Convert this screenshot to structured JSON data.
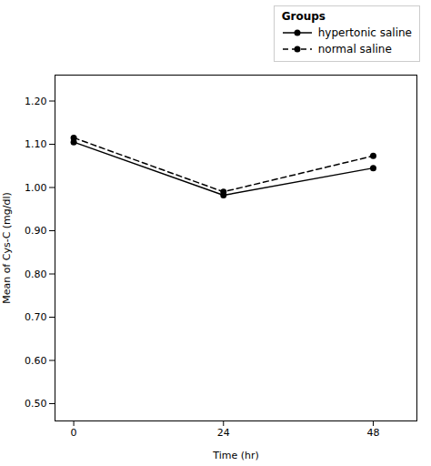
{
  "chart_data": {
    "type": "line",
    "x": [
      0,
      24,
      48
    ],
    "series": [
      {
        "name": "hypertonic saline",
        "color": "#000000",
        "line_style": "solid",
        "marker": "circle",
        "values": [
          1.105,
          0.982,
          1.045
        ]
      },
      {
        "name": "normal saline",
        "color": "#000000",
        "line_style": "dashed",
        "marker": "circle",
        "values": [
          1.115,
          0.99,
          1.073
        ]
      }
    ],
    "xlabel": "Time (hr)",
    "ylabel": "Mean of Cys-C (mg/dl)",
    "xlim": [
      -3,
      55
    ],
    "ylim": [
      0.46,
      1.26
    ],
    "xticks": [
      0,
      24,
      48
    ],
    "yticks": [
      {
        "value": 0.5,
        "label": "0.50"
      },
      {
        "value": 0.6,
        "label": "0.60"
      },
      {
        "value": 0.7,
        "label": "0.70"
      },
      {
        "value": 0.8,
        "label": "0.80"
      },
      {
        "value": 0.9,
        "label": "0.90"
      },
      {
        "value": 1.0,
        "label": "1.00"
      },
      {
        "value": 1.1,
        "label": "1.10"
      },
      {
        "value": 1.2,
        "label": "1.20"
      }
    ],
    "legend_title": "Groups",
    "legend": "upper right",
    "grid": false
  }
}
